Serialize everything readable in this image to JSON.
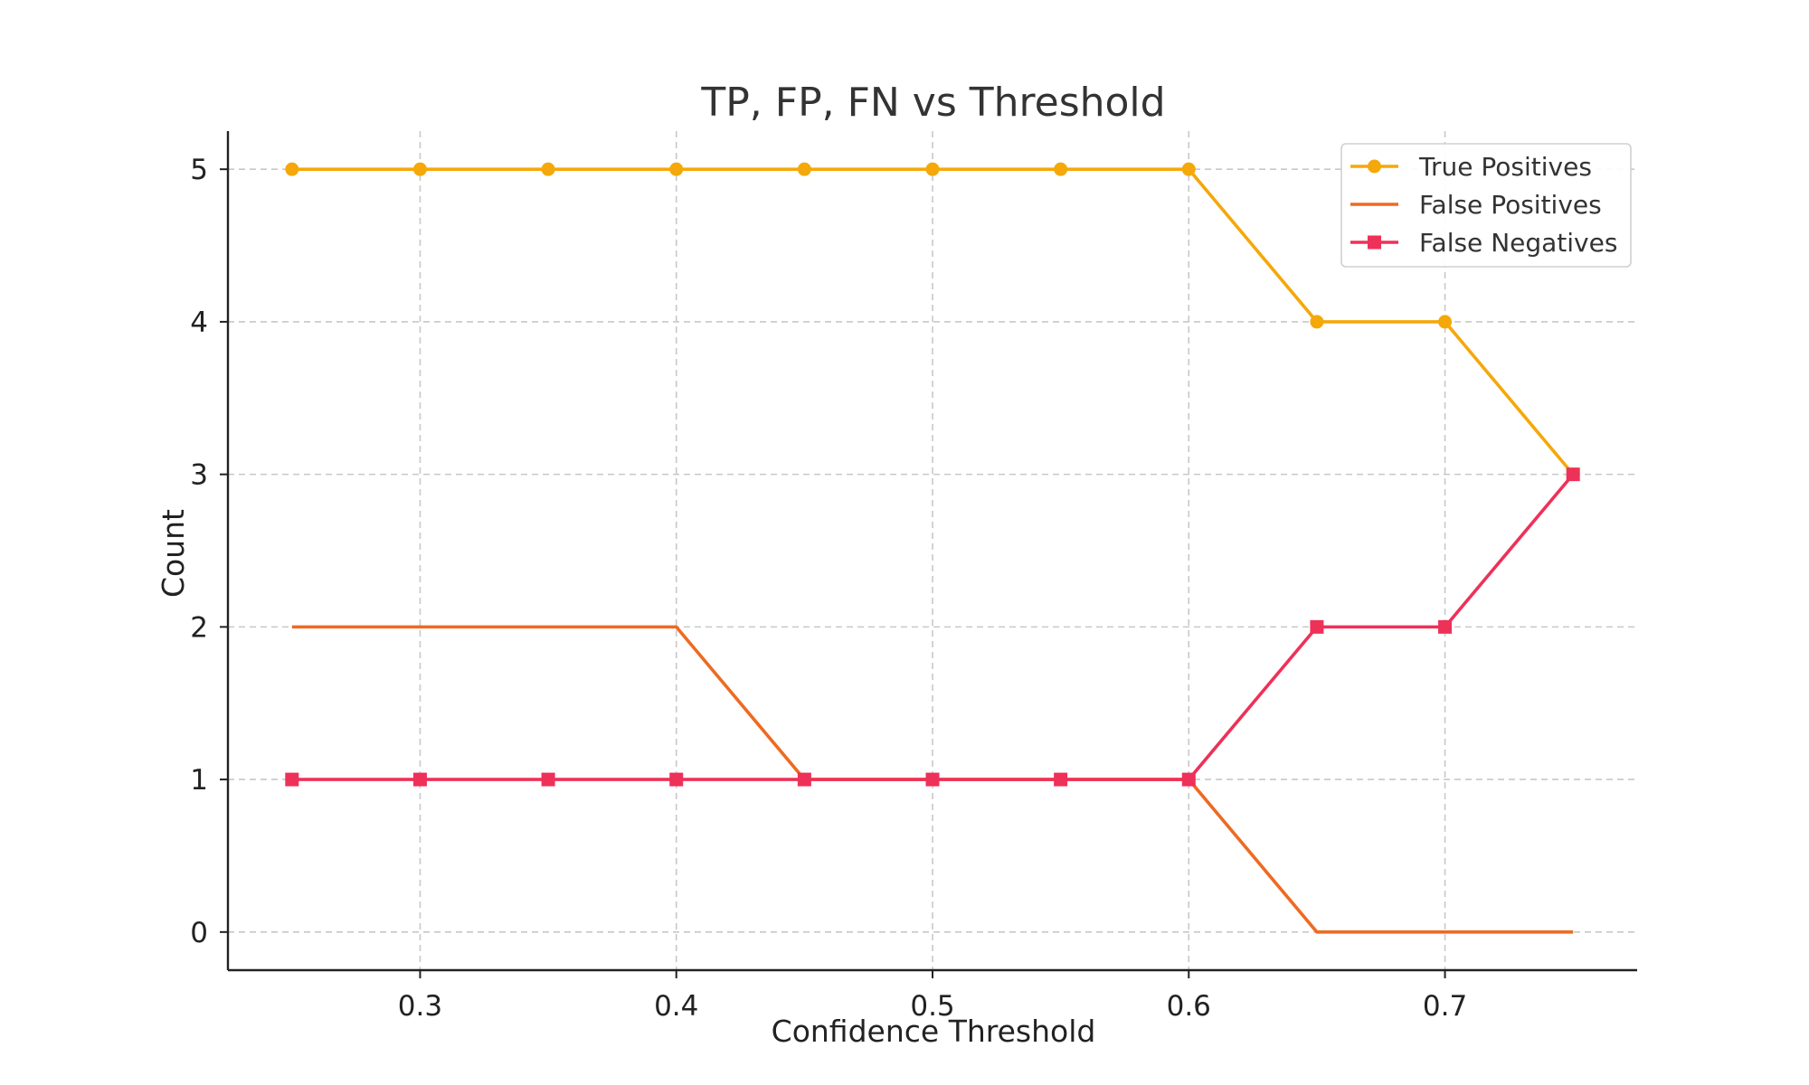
{
  "chart_data": {
    "type": "line",
    "title": "TP, FP, FN vs Threshold",
    "xlabel": "Confidence Threshold",
    "ylabel": "Count",
    "x": [
      0.25,
      0.3,
      0.35,
      0.4,
      0.45,
      0.5,
      0.55,
      0.6,
      0.65,
      0.7,
      0.75
    ],
    "xlim": [
      0.225,
      0.775
    ],
    "ylim": [
      -0.25,
      5.25
    ],
    "xticks": [
      "0.3",
      "0.4",
      "0.5",
      "0.6",
      "0.7"
    ],
    "yticks": [
      "0",
      "1",
      "2",
      "3",
      "4",
      "5"
    ],
    "grid": true,
    "legend_position": "top-right",
    "series": [
      {
        "name": "True Positives",
        "color": "#F5A80A",
        "marker": "circle",
        "values": [
          5,
          5,
          5,
          5,
          5,
          5,
          5,
          5,
          4,
          4,
          3
        ]
      },
      {
        "name": "False Positives",
        "color": "#EE6A22",
        "marker": "none",
        "values": [
          2,
          2,
          2,
          2,
          1,
          1,
          1,
          1,
          0,
          0,
          0
        ]
      },
      {
        "name": "False Negatives",
        "color": "#EE3158",
        "marker": "square",
        "values": [
          1,
          1,
          1,
          1,
          1,
          1,
          1,
          1,
          2,
          2,
          3
        ]
      }
    ]
  }
}
